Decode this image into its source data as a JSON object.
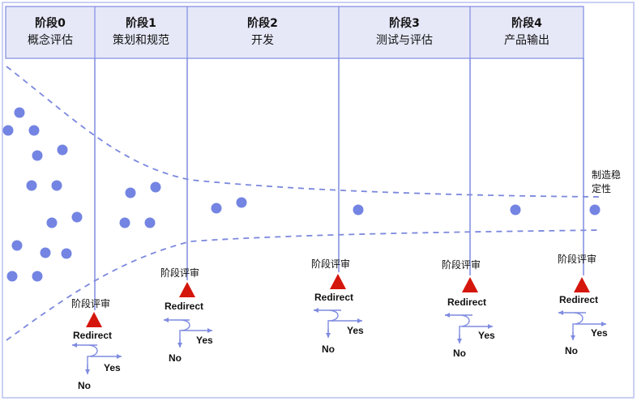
{
  "stages": [
    {
      "label": "阶段0",
      "name": "概念评估"
    },
    {
      "label": "阶段1",
      "name": "策划和规范"
    },
    {
      "label": "阶段2",
      "name": "开发"
    },
    {
      "label": "阶段3",
      "name": "测试与评估"
    },
    {
      "label": "阶段4",
      "name": "产品输出"
    }
  ],
  "gates": [
    {
      "review": "阶段评审",
      "redirect": "Redirect",
      "yes": "Yes",
      "no": "No"
    },
    {
      "review": "阶段评审",
      "redirect": "Redirect",
      "yes": "Yes",
      "no": "No"
    },
    {
      "review": "阶段评审",
      "redirect": "Redirect",
      "yes": "Yes",
      "no": "No"
    },
    {
      "review": "阶段评审",
      "redirect": "Redirect",
      "yes": "Yes",
      "no": "No"
    },
    {
      "review": "阶段评审",
      "redirect": "Redirect",
      "yes": "Yes",
      "no": "No"
    }
  ],
  "end_label": [
    "制造稳",
    "定性"
  ],
  "colors": {
    "header_fill": "#e6e8f8",
    "line": "#7f8be0",
    "dot": "#7384e2",
    "funnel": "#7b88dd",
    "triangle": "#d5160c",
    "frame": "#b9c1ef"
  }
}
